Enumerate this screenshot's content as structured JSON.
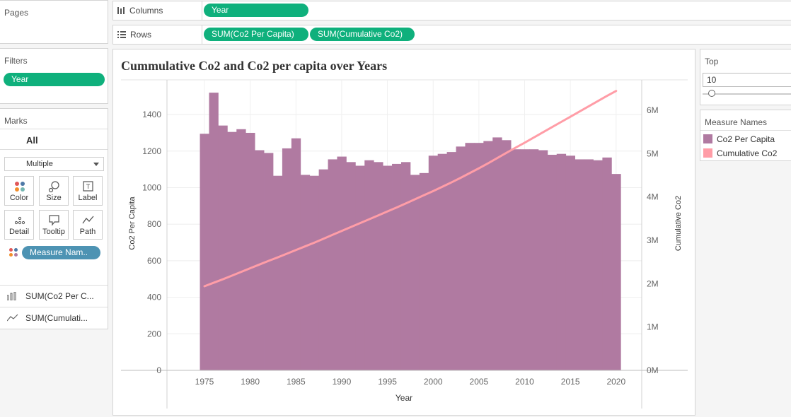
{
  "pages": {
    "title": "Pages"
  },
  "columns_shelf": {
    "label": "Columns",
    "pills": [
      "Year"
    ]
  },
  "rows_shelf": {
    "label": "Rows",
    "pills": [
      "SUM(Co2 Per Capita)",
      "SUM(Cumulative Co2)"
    ]
  },
  "filters": {
    "title": "Filters",
    "pills": [
      "Year"
    ]
  },
  "marks": {
    "title": "Marks",
    "all_label": "All",
    "type_value": "Multiple",
    "buttons": [
      "Color",
      "Size",
      "Label",
      "Detail",
      "Tooltip",
      "Path"
    ],
    "color_pill": "Measure Nam..",
    "measures": [
      "SUM(Co2 Per C...",
      "SUM(Cumulati..."
    ]
  },
  "top_filter": {
    "title": "Top",
    "value": "10",
    "slider_fraction": 0.1
  },
  "legend": {
    "title": "Measure Names",
    "items": [
      {
        "label": "Co2 Per Capita",
        "color": "#b07aa1"
      },
      {
        "label": "Cumulative Co2",
        "color": "#ff9da7"
      }
    ]
  },
  "chart_data": {
    "type": "bar",
    "title": "Cummulative Co2 and Co2 per capita over Years",
    "xlabel": "Year",
    "ylabel": "Co2 Per Capita",
    "y2label": "Cumulative Co2",
    "x_ticks": [
      "1975",
      "1980",
      "1985",
      "1990",
      "1995",
      "2000",
      "2005",
      "2010",
      "2015",
      "2020"
    ],
    "y_ticks": [
      "0",
      "200",
      "400",
      "600",
      "800",
      "1000",
      "1200",
      "1400"
    ],
    "y2_ticks": [
      "0M",
      "1M",
      "2M",
      "3M",
      "4M",
      "5M",
      "6M"
    ],
    "ylim": [
      0,
      1590
    ],
    "y2lim": [
      0,
      6700000
    ],
    "grid": true,
    "x": [
      1975,
      1976,
      1977,
      1978,
      1979,
      1980,
      1981,
      1982,
      1983,
      1984,
      1985,
      1986,
      1987,
      1988,
      1989,
      1990,
      1991,
      1992,
      1993,
      1994,
      1995,
      1996,
      1997,
      1998,
      1999,
      2000,
      2001,
      2002,
      2003,
      2004,
      2005,
      2006,
      2007,
      2008,
      2009,
      2010,
      2011,
      2012,
      2013,
      2014,
      2015,
      2016,
      2017,
      2018,
      2019,
      2020
    ],
    "series": [
      {
        "name": "Co2 Per Capita",
        "kind": "bar",
        "axis": "left",
        "color": "#b07aa1",
        "values": [
          1295,
          1520,
          1340,
          1305,
          1320,
          1300,
          1205,
          1190,
          1065,
          1215,
          1270,
          1070,
          1065,
          1100,
          1155,
          1170,
          1140,
          1120,
          1150,
          1140,
          1120,
          1130,
          1140,
          1070,
          1080,
          1175,
          1185,
          1195,
          1225,
          1245,
          1245,
          1255,
          1275,
          1260,
          1210,
          1210,
          1210,
          1205,
          1180,
          1185,
          1175,
          1155,
          1155,
          1150,
          1165,
          1075
        ]
      },
      {
        "name": "Cumulative Co2",
        "kind": "line",
        "axis": "right",
        "color": "#ff9da7",
        "values": [
          1940000,
          2020000,
          2100000,
          2185000,
          2270000,
          2355000,
          2440000,
          2525000,
          2605000,
          2690000,
          2775000,
          2860000,
          2945000,
          3035000,
          3125000,
          3215000,
          3305000,
          3395000,
          3485000,
          3575000,
          3665000,
          3755000,
          3850000,
          3945000,
          4040000,
          4135000,
          4235000,
          4335000,
          4440000,
          4550000,
          4660000,
          4775000,
          4895000,
          5015000,
          5135000,
          5250000,
          5370000,
          5490000,
          5610000,
          5730000,
          5850000,
          5970000,
          6090000,
          6210000,
          6330000,
          6445000
        ]
      }
    ]
  }
}
